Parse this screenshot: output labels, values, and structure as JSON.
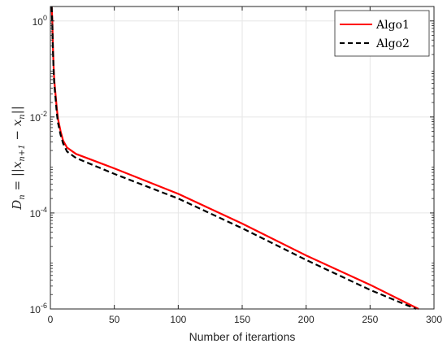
{
  "chart_data": {
    "type": "line",
    "xlabel": "Number of iterartions",
    "ylabel": "D_n = ||x_{n+1} − x_n||",
    "ylabel_parts": {
      "lhs": "D",
      "lhs_sub": "n",
      "eq": " = ||",
      "x1": "x",
      "x1_sub": "n+1",
      "minus": " − ",
      "x2": "x",
      "x2_sub": "n",
      "close": "||"
    },
    "xlim": [
      0,
      300
    ],
    "ylim": [
      1e-06,
      2
    ],
    "yscale": "log",
    "grid": true,
    "legend_position": "top-right",
    "x_ticks": [
      {
        "value": 0,
        "label": "0"
      },
      {
        "value": 50,
        "label": "50"
      },
      {
        "value": 100,
        "label": "100"
      },
      {
        "value": 150,
        "label": "150"
      },
      {
        "value": 200,
        "label": "200"
      },
      {
        "value": 250,
        "label": "250"
      },
      {
        "value": 300,
        "label": "300"
      }
    ],
    "y_ticks": [
      {
        "value": 1e-06,
        "base": "10",
        "exp": "-6"
      },
      {
        "value": 0.0001,
        "base": "10",
        "exp": "-4"
      },
      {
        "value": 0.01,
        "base": "10",
        "exp": "-2"
      },
      {
        "value": 1,
        "base": "10",
        "exp": "0"
      }
    ],
    "series": [
      {
        "name": "Algo1",
        "color": "#ff0000",
        "dash": "solid",
        "x": [
          1,
          1.5,
          2,
          2.5,
          3,
          4,
          5,
          6,
          8,
          10,
          13,
          20,
          50,
          100,
          150,
          200,
          250,
          288
        ],
        "y": [
          2.0,
          1.0,
          0.3,
          0.12,
          0.06,
          0.03,
          0.015,
          0.009,
          0.005,
          0.0032,
          0.0023,
          0.0017,
          0.00085,
          0.00025,
          6e-05,
          1.3e-05,
          3.2e-06,
          1e-06
        ]
      },
      {
        "name": "Algo2",
        "color": "#000000",
        "dash": "dashed",
        "x": [
          1,
          1.5,
          2,
          2.5,
          3,
          4,
          5,
          6,
          8,
          10,
          13,
          20,
          50,
          100,
          150,
          200,
          250,
          286
        ],
        "y": [
          2.0,
          0.8,
          0.25,
          0.1,
          0.05,
          0.025,
          0.012,
          0.0075,
          0.0042,
          0.0028,
          0.0019,
          0.0014,
          0.00065,
          0.0002,
          4.8e-05,
          1.05e-05,
          2.5e-06,
          1e-06
        ]
      }
    ]
  }
}
